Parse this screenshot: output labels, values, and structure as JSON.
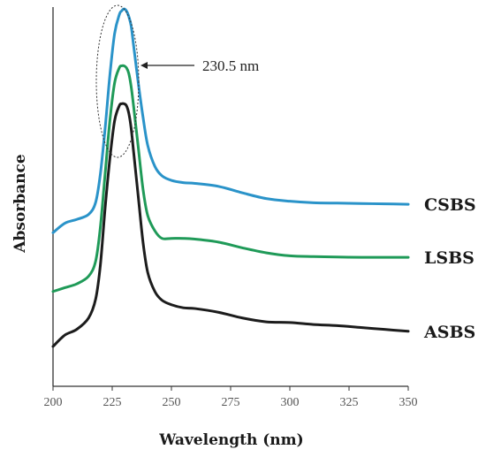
{
  "chart_data": {
    "type": "line",
    "xlabel": "Wavelength (nm)",
    "ylabel": "Absorbance",
    "xlim": [
      200,
      350
    ],
    "ylim": [
      0,
      1
    ],
    "x_ticks": [
      "200",
      "225",
      "250",
      "275",
      "300",
      "325",
      "350"
    ],
    "y_ticks_shown": false,
    "grid": false,
    "legend": "inline labels at right end of each curve",
    "annotation": {
      "text": "230.5 nm",
      "x": 230.5,
      "style": "dashed ellipse around peaks with arrow"
    },
    "series": [
      {
        "name": "CSBS",
        "color": "#2a93c9",
        "x": [
          200,
          205,
          210,
          215,
          218,
          220,
          222,
          224,
          226,
          228,
          229,
          230,
          231,
          232,
          233,
          234,
          236,
          238,
          240,
          243,
          246,
          250,
          255,
          260,
          270,
          280,
          290,
          300,
          310,
          320,
          330,
          340,
          350
        ],
        "y": [
          0.405,
          0.43,
          0.44,
          0.453,
          0.485,
          0.56,
          0.68,
          0.82,
          0.93,
          0.98,
          0.99,
          0.995,
          0.99,
          0.975,
          0.95,
          0.9,
          0.8,
          0.71,
          0.635,
          0.58,
          0.555,
          0.543,
          0.537,
          0.535,
          0.527,
          0.51,
          0.495,
          0.488,
          0.484,
          0.483,
          0.482,
          0.481,
          0.48
        ]
      },
      {
        "name": "LSBS",
        "color": "#1f9a58",
        "x": [
          200,
          205,
          210,
          215,
          218,
          220,
          222,
          224,
          226,
          228,
          229,
          230,
          231,
          232,
          233,
          234,
          236,
          238,
          240,
          243,
          246,
          250,
          255,
          260,
          270,
          280,
          290,
          300,
          310,
          320,
          330,
          340,
          350
        ],
        "y": [
          0.25,
          0.26,
          0.27,
          0.29,
          0.33,
          0.42,
          0.56,
          0.7,
          0.8,
          0.84,
          0.845,
          0.845,
          0.84,
          0.825,
          0.79,
          0.74,
          0.63,
          0.52,
          0.45,
          0.41,
          0.39,
          0.39,
          0.39,
          0.388,
          0.38,
          0.365,
          0.352,
          0.344,
          0.342,
          0.341,
          0.34,
          0.34,
          0.34
        ]
      },
      {
        "name": "ASBS",
        "color": "#1c1c1c",
        "x": [
          200,
          205,
          210,
          215,
          218,
          220,
          222,
          224,
          226,
          228,
          229,
          230,
          231,
          232,
          233,
          234,
          236,
          238,
          240,
          243,
          246,
          250,
          255,
          260,
          270,
          280,
          290,
          300,
          310,
          320,
          330,
          340,
          350
        ],
        "y": [
          0.105,
          0.135,
          0.15,
          0.18,
          0.23,
          0.32,
          0.47,
          0.6,
          0.7,
          0.74,
          0.745,
          0.745,
          0.74,
          0.72,
          0.68,
          0.62,
          0.5,
          0.38,
          0.3,
          0.25,
          0.227,
          0.215,
          0.207,
          0.205,
          0.195,
          0.18,
          0.17,
          0.168,
          0.163,
          0.16,
          0.155,
          0.15,
          0.145
        ]
      }
    ]
  }
}
